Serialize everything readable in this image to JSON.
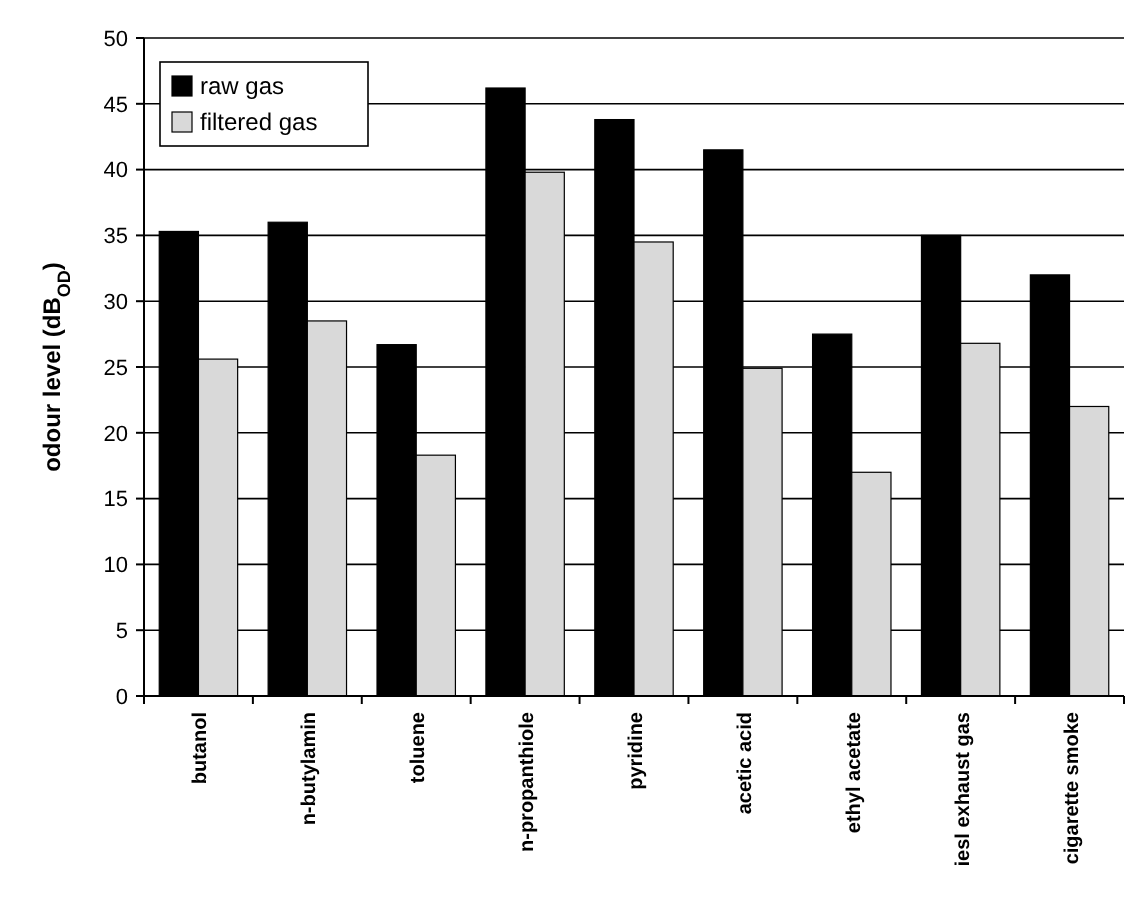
{
  "chart_data": {
    "type": "bar",
    "ylabel": "odour level  (dB$_{OD}$)",
    "categories": [
      "butanol",
      "n-butylamin",
      "toluene",
      "n-propanthiole",
      "pyridine",
      "acetic acid",
      "ethyl acetate",
      "iesl exhaust gas",
      "cigarette smoke"
    ],
    "series": [
      {
        "name": "raw gas",
        "color": "#000000",
        "values": [
          35.3,
          36,
          26.7,
          46.2,
          43.8,
          41.5,
          27.5,
          35,
          32
        ]
      },
      {
        "name": "filtered gas",
        "color": "#d9d9d9",
        "values": [
          25.6,
          28.5,
          18.3,
          39.8,
          34.5,
          24.9,
          17,
          26.8,
          22
        ]
      }
    ],
    "ylim": [
      0,
      50
    ],
    "yticks": [
      0,
      5,
      10,
      15,
      20,
      25,
      30,
      35,
      40,
      45,
      50
    ],
    "grid": "y",
    "legend": "top left"
  }
}
